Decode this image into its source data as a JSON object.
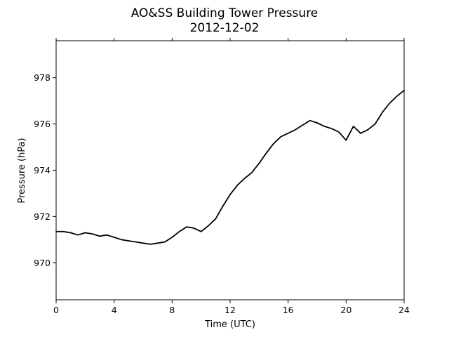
{
  "chart_data": {
    "type": "line",
    "title": "AO&SS Building Tower Pressure",
    "subtitle": "2012-12-02",
    "xlabel": "Time (UTC)",
    "ylabel": "Pressure (hPa)",
    "xlim": [
      0,
      24
    ],
    "ylim": [
      968.4,
      979.6
    ],
    "xticks": [
      0,
      4,
      8,
      12,
      16,
      20,
      24
    ],
    "yticks": [
      970,
      972,
      974,
      976,
      978
    ],
    "grid": false,
    "line_color": "#000000",
    "series": [
      {
        "x": [
          0,
          0.5,
          1,
          1.5,
          2,
          2.5,
          3,
          3.5,
          4,
          4.5,
          5,
          5.5,
          6,
          6.5,
          7,
          7.5,
          8,
          8.5,
          9,
          9.5,
          10,
          10.5,
          11,
          11.5,
          12,
          12.5,
          13,
          13.5,
          14,
          14.5,
          15,
          15.5,
          16,
          16.5,
          17,
          17.5,
          18,
          18.5,
          19,
          19.5,
          20,
          20.5,
          21,
          21.5,
          22,
          22.5,
          23,
          23.5,
          24
        ],
        "y": [
          971.35,
          971.35,
          971.3,
          971.2,
          971.3,
          971.25,
          971.15,
          971.2,
          971.1,
          971.0,
          970.95,
          970.9,
          970.85,
          970.8,
          970.85,
          970.9,
          971.1,
          971.35,
          971.55,
          971.5,
          971.35,
          971.6,
          971.9,
          972.45,
          972.95,
          973.35,
          973.65,
          973.9,
          974.3,
          974.75,
          975.15,
          975.45,
          975.6,
          975.75,
          975.95,
          976.15,
          976.05,
          975.9,
          975.8,
          975.65,
          975.3,
          975.9,
          975.6,
          975.75,
          976.0,
          976.5,
          976.9,
          977.2,
          977.45
        ]
      }
    ]
  }
}
